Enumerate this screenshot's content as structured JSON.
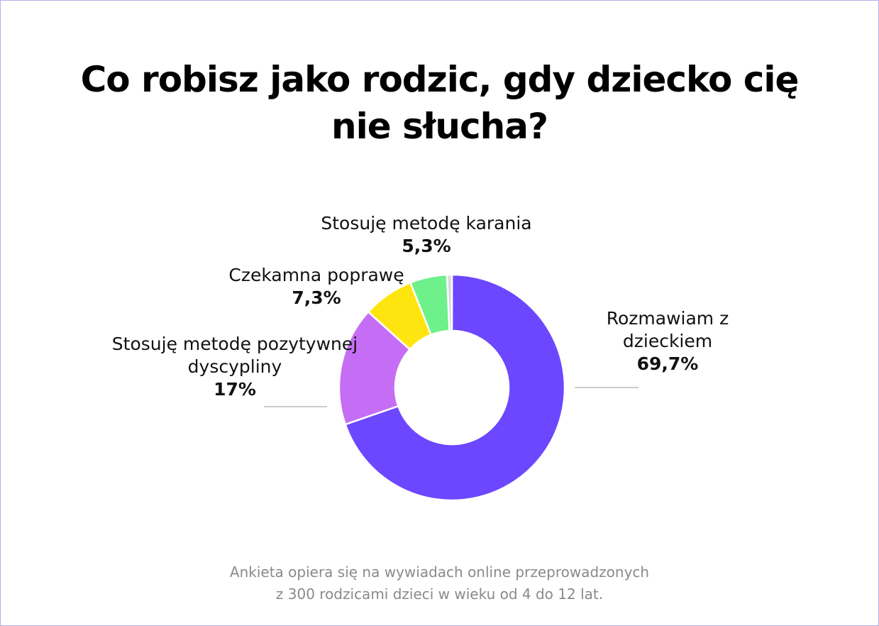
{
  "chart_data": {
    "type": "donut",
    "title": "Co robisz jako rodzic, gdy dziecko cię nie słucha?",
    "categories": [
      "Rozmawiam z dzieckiem",
      "Stosuję metodę pozytywnej dyscypliny",
      "Czekamna poprawę",
      "Stosuję metodę karania",
      null
    ],
    "values": [
      69.7,
      17,
      7.3,
      5.3,
      0.7
    ],
    "value_labels": [
      "69,7%",
      "17%",
      "7,3%",
      "5,3%",
      null
    ],
    "colors": [
      "#6c47ff",
      "#c56ef5",
      "#ffe50f",
      "#6ef08a",
      "#d9d9d9"
    ],
    "notes": [
      "Ankieta opiera się na wywiadach online przeprowadzonych",
      "z 300 rodzicami dzieci w wieku od 4 do 12 lat."
    ]
  }
}
